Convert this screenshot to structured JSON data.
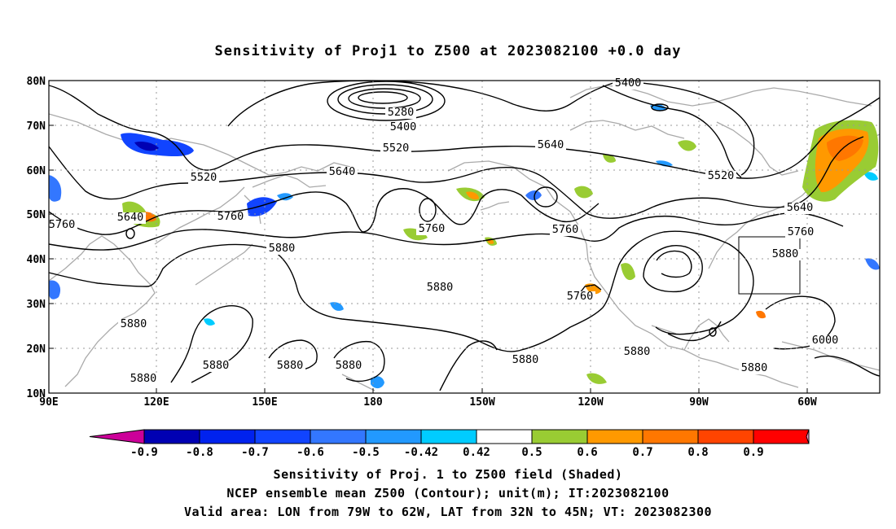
{
  "title": "Sensitivity of Proj1 to Z500 at 2023082100 +0.0 day",
  "axes": {
    "lat_labels": [
      "80N",
      "70N",
      "60N",
      "50N",
      "40N",
      "30N",
      "20N",
      "10N"
    ],
    "lon_labels": [
      "90E",
      "120E",
      "150E",
      "180",
      "150W",
      "120W",
      "90W",
      "60W"
    ]
  },
  "contour_labels": [
    {
      "text": "5280"
    },
    {
      "text": "5400"
    },
    {
      "text": "5400"
    },
    {
      "text": "5520"
    },
    {
      "text": "5520"
    },
    {
      "text": "5520"
    },
    {
      "text": "5640"
    },
    {
      "text": "5640"
    },
    {
      "text": "5640"
    },
    {
      "text": "5640"
    },
    {
      "text": "5760"
    },
    {
      "text": "5760"
    },
    {
      "text": "5760"
    },
    {
      "text": "5760"
    },
    {
      "text": "5760"
    },
    {
      "text": "5760"
    },
    {
      "text": "5880"
    },
    {
      "text": "5880"
    },
    {
      "text": "5880"
    },
    {
      "text": "5880"
    },
    {
      "text": "5880"
    },
    {
      "text": "5880"
    },
    {
      "text": "5880"
    },
    {
      "text": "5880"
    },
    {
      "text": "5880"
    },
    {
      "text": "5880"
    },
    {
      "text": "5880"
    },
    {
      "text": "6000"
    }
  ],
  "colorbar": {
    "labels": [
      "-0.9",
      "-0.8",
      "-0.7",
      "-0.6",
      "-0.5",
      "-0.42",
      "0.42",
      "0.5",
      "0.6",
      "0.7",
      "0.8",
      "0.9"
    ],
    "colors": [
      "#cc0099",
      "#0000b3",
      "#0022ee",
      "#1144ff",
      "#3377ff",
      "#2299ff",
      "#00ccff",
      "#ffffff",
      "#99cc33",
      "#ff9900",
      "#ff7700",
      "#ff4400",
      "#ff0000",
      "#ff99cc"
    ]
  },
  "captions": [
    "Sensitivity of Proj. 1 to Z500 field (Shaded)",
    "NCEP ensemble mean Z500 (Contour); unit(m); IT:2023082100",
    "Valid area: LON from 79W to 62W, LAT from 32N to 45N; VT: 2023082300"
  ]
}
